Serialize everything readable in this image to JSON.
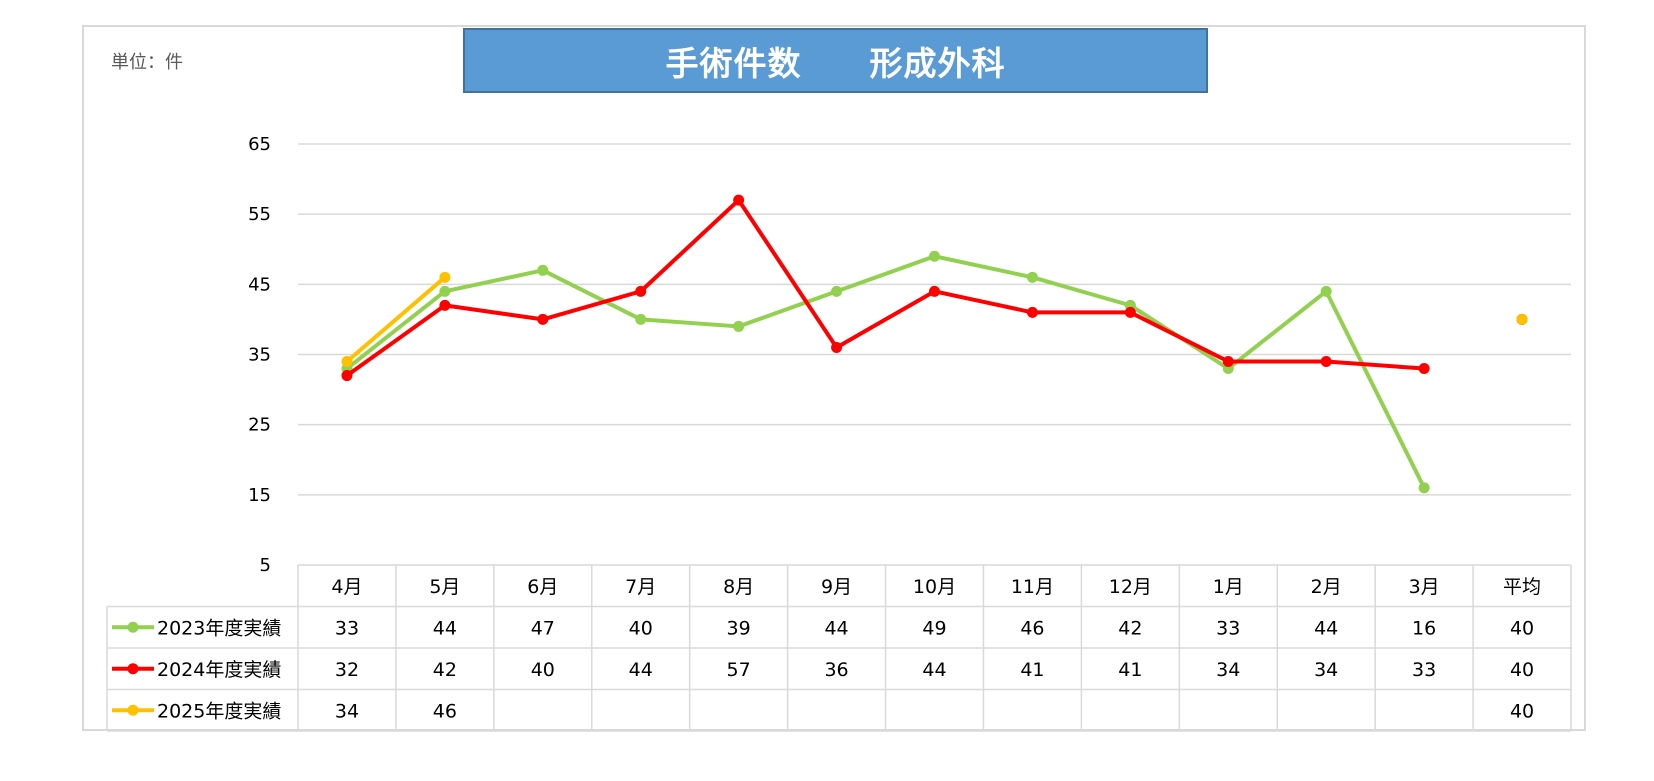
{
  "unit_label": "単位：件",
  "title": "手術件数　　形成外科",
  "chart_data": {
    "type": "line",
    "title": "手術件数　　形成外科",
    "categories": [
      "4月",
      "5月",
      "6月",
      "7月",
      "8月",
      "9月",
      "10月",
      "11月",
      "12月",
      "1月",
      "2月",
      "3月"
    ],
    "average_label": "平均",
    "ylim": [
      5,
      65
    ],
    "yticks": [
      5,
      15,
      25,
      35,
      45,
      55,
      65
    ],
    "grid": true,
    "legend": "table-left",
    "series": [
      {
        "name": "2023年度実績",
        "color": "#92d050",
        "values": [
          33,
          44,
          47,
          40,
          39,
          44,
          49,
          46,
          42,
          33,
          44,
          16
        ],
        "average": 40
      },
      {
        "name": "2024年度実績",
        "color": "#ff0000",
        "values": [
          32,
          42,
          40,
          44,
          57,
          36,
          44,
          41,
          41,
          34,
          34,
          33
        ],
        "average": 40
      },
      {
        "name": "2025年度実績",
        "color": "#ffc000",
        "values": [
          34,
          46,
          null,
          null,
          null,
          null,
          null,
          null,
          null,
          null,
          null,
          null
        ],
        "average": 40
      }
    ]
  }
}
